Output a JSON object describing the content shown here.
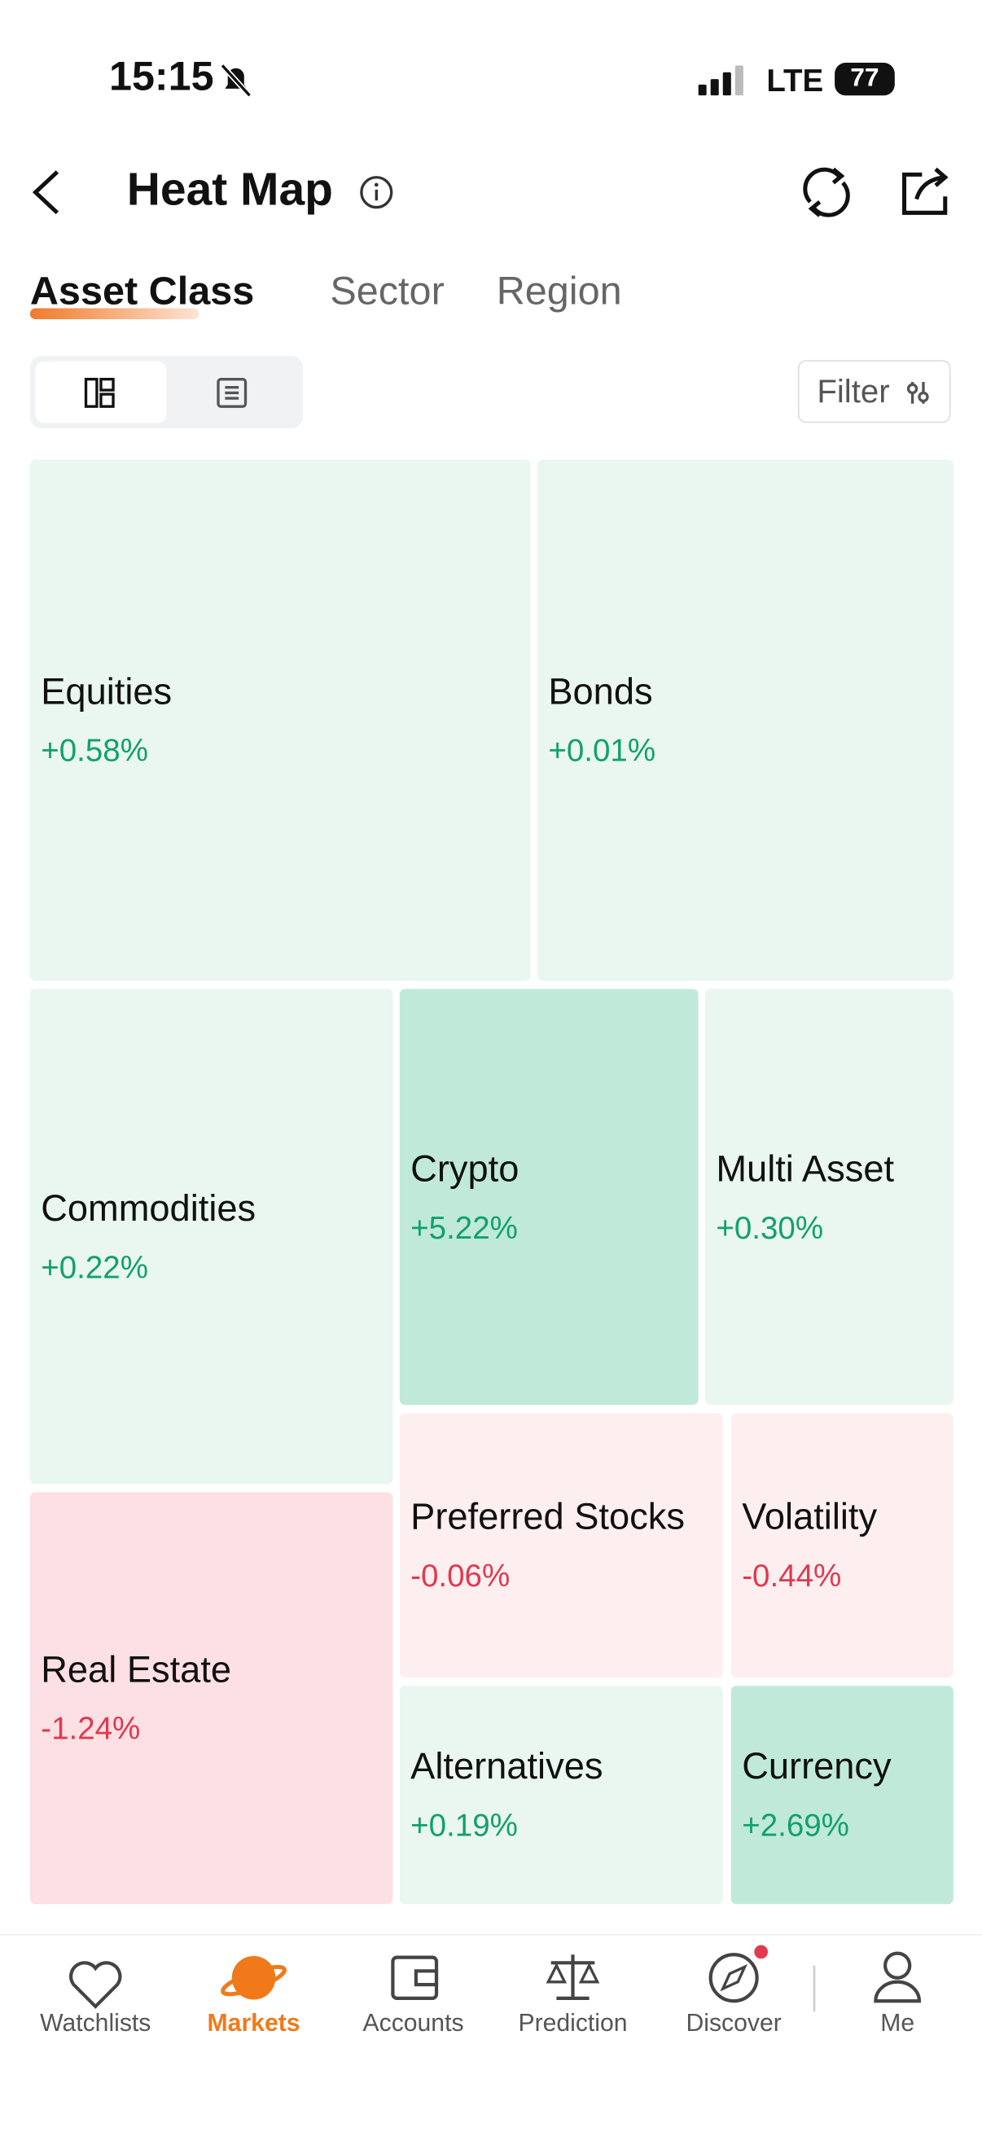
{
  "status_bar": {
    "time": "15:15",
    "network": "LTE",
    "battery": "77"
  },
  "header": {
    "title": "Heat Map"
  },
  "tabs": [
    "Asset Class",
    "Sector",
    "Region"
  ],
  "filter": "Filter",
  "tiles": [
    {
      "label": "Equities",
      "change": "+0.58%"
    },
    {
      "label": "Bonds",
      "change": "+0.01%"
    },
    {
      "label": "Commodities",
      "change": "+0.22%"
    },
    {
      "label": "Crypto",
      "change": "+5.22%"
    },
    {
      "label": "Multi Asset",
      "change": "+0.30%"
    },
    {
      "label": "Preferred Stocks",
      "change": "-0.06%"
    },
    {
      "label": "Volatility",
      "change": "-0.44%"
    },
    {
      "label": "Real Estate",
      "change": "-1.24%"
    },
    {
      "label": "Alternatives",
      "change": "+0.19%"
    },
    {
      "label": "Currency",
      "change": "+2.69%"
    }
  ],
  "nav": [
    "Watchlists",
    "Markets",
    "Accounts",
    "Prediction",
    "Discover",
    "Me"
  ]
}
